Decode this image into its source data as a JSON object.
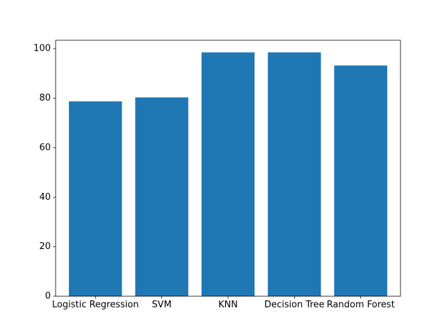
{
  "chart_data": {
    "type": "bar",
    "title": "",
    "xlabel": "",
    "ylabel": "",
    "categories": [
      "Logistic Regression",
      "SVM",
      "KNN",
      "Decision Tree",
      "Random Forest"
    ],
    "values": [
      78.7,
      80.3,
      98.5,
      98.5,
      93.2
    ],
    "ylim": [
      0,
      103.4
    ],
    "yticks": [
      0,
      20,
      40,
      60,
      80,
      100
    ],
    "grid": false,
    "legend": "none",
    "colors": {
      "bar": "#1f77b4",
      "axis": "#000000",
      "background": "#ffffff"
    }
  }
}
